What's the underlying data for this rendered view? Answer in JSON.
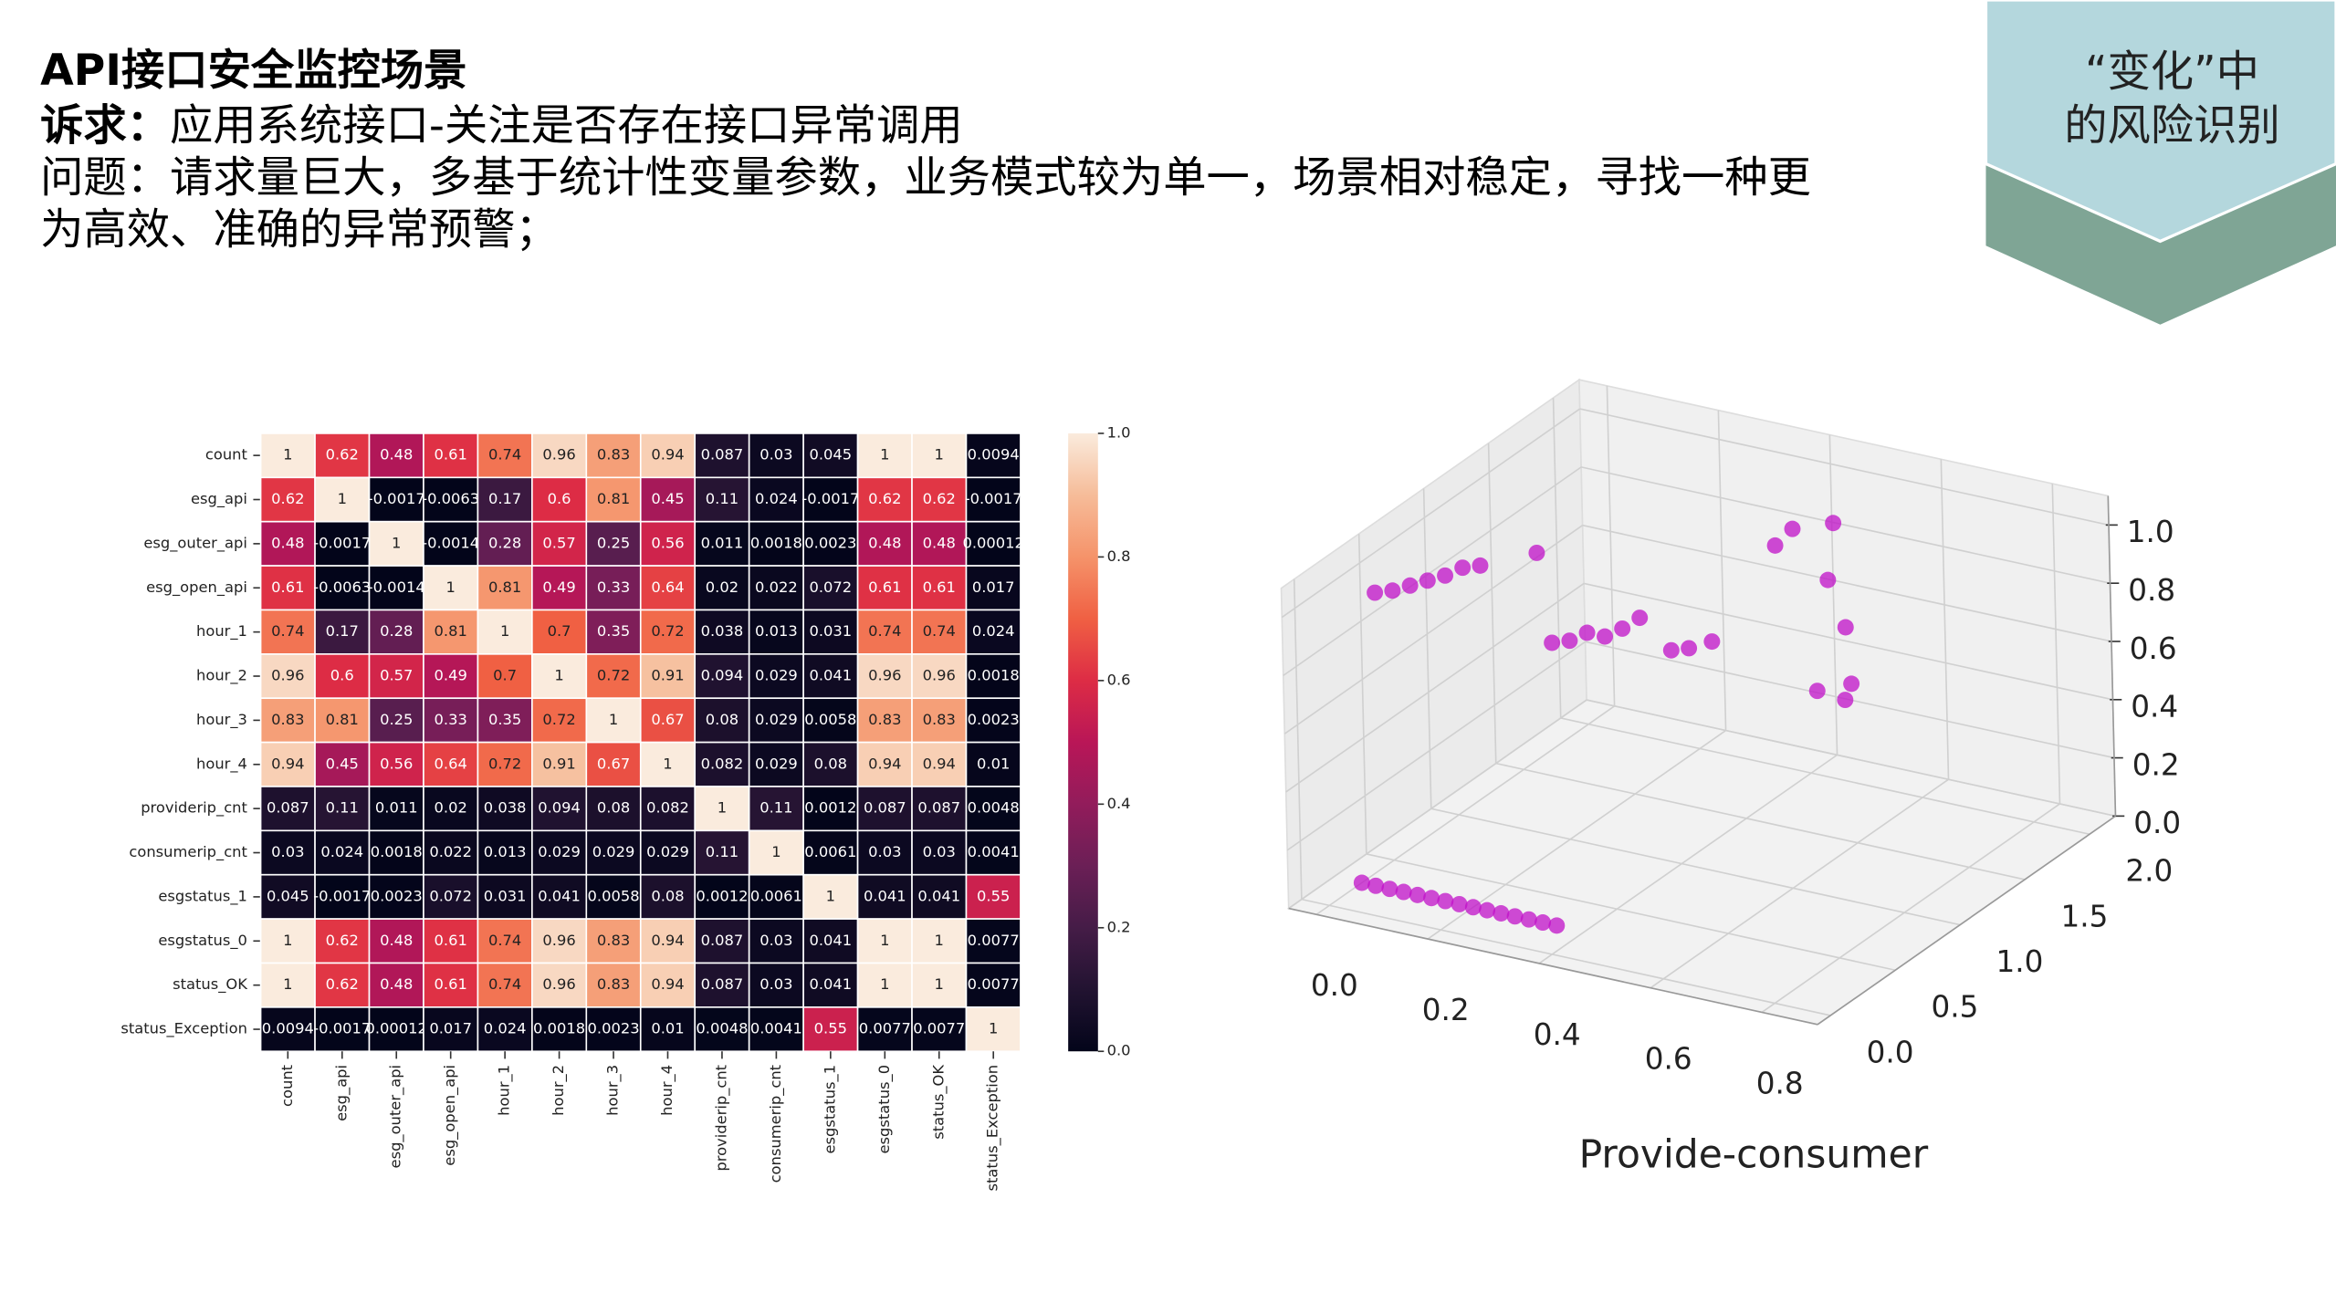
{
  "header": {
    "title": "API接口安全监控场景",
    "demand_label": "诉求：",
    "demand": "应用系统接口-关注是否存在接口异常调用",
    "problem_lines": [
      "问题：请求量巨大，多基于统计性变量参数，业务模式较为单一，场景相对稳定，寻找一种更",
      "为高效、准确的异常预警；"
    ]
  },
  "badge": {
    "lines": [
      "“变化”中",
      "的风险识别"
    ]
  },
  "chart_data": [
    {
      "type": "heatmap",
      "rows": [
        "count",
        "esg_api",
        "esg_outer_api",
        "esg_open_api",
        "hour_1",
        "hour_2",
        "hour_3",
        "hour_4",
        "providerip_cnt",
        "consumerip_cnt",
        "esgstatus_1",
        "esgstatus_0",
        "status_OK",
        "status_Exception"
      ],
      "columns": [
        "count",
        "esg_api",
        "esg_outer_api",
        "esg_open_api",
        "hour_1",
        "hour_2",
        "hour_3",
        "hour_4",
        "providerip_cnt",
        "consumerip_cnt",
        "esgstatus_1",
        "esgstatus_0",
        "status_OK",
        "status_Exception"
      ],
      "values": [
        [
          1,
          0.62,
          0.48,
          0.61,
          0.74,
          0.96,
          0.83,
          0.94,
          0.087,
          0.03,
          0.045,
          1,
          1,
          0.0094
        ],
        [
          0.62,
          1,
          -0.0017,
          -0.0063,
          0.17,
          0.6,
          0.81,
          0.45,
          0.11,
          0.024,
          -0.0017,
          0.62,
          0.62,
          -0.0017
        ],
        [
          0.48,
          -0.0017,
          1,
          -0.0014,
          0.28,
          0.57,
          0.25,
          0.56,
          0.011,
          0.0018,
          0.0023,
          0.48,
          0.48,
          0.00012
        ],
        [
          0.61,
          -0.0063,
          -0.0014,
          1,
          0.81,
          0.49,
          0.33,
          0.64,
          0.02,
          0.022,
          0.072,
          0.61,
          0.61,
          0.017
        ],
        [
          0.74,
          0.17,
          0.28,
          0.81,
          1,
          0.7,
          0.35,
          0.72,
          0.038,
          0.013,
          0.031,
          0.74,
          0.74,
          0.024
        ],
        [
          0.96,
          0.6,
          0.57,
          0.49,
          0.7,
          1,
          0.72,
          0.91,
          0.094,
          0.029,
          0.041,
          0.96,
          0.96,
          0.0018
        ],
        [
          0.83,
          0.81,
          0.25,
          0.33,
          0.35,
          0.72,
          1,
          0.67,
          0.08,
          0.029,
          0.0058,
          0.83,
          0.83,
          0.0023
        ],
        [
          0.94,
          0.45,
          0.56,
          0.64,
          0.72,
          0.91,
          0.67,
          1,
          0.082,
          0.029,
          0.08,
          0.94,
          0.94,
          0.01
        ],
        [
          0.087,
          0.11,
          0.011,
          0.02,
          0.038,
          0.094,
          0.08,
          0.082,
          1,
          0.11,
          0.0012,
          0.087,
          0.087,
          0.0048
        ],
        [
          0.03,
          0.024,
          0.0018,
          0.022,
          0.013,
          0.029,
          0.029,
          0.029,
          0.11,
          1,
          0.0061,
          0.03,
          0.03,
          0.0041
        ],
        [
          0.045,
          -0.0017,
          0.0023,
          0.072,
          0.031,
          0.041,
          0.0058,
          0.08,
          0.0012,
          0.0061,
          1,
          0.041,
          0.041,
          0.55
        ],
        [
          1,
          0.62,
          0.48,
          0.61,
          0.74,
          0.96,
          0.83,
          0.94,
          0.087,
          0.03,
          0.041,
          1,
          1,
          0.0077
        ],
        [
          1,
          0.62,
          0.48,
          0.61,
          0.74,
          0.96,
          0.83,
          0.94,
          0.087,
          0.03,
          0.041,
          1,
          1,
          0.0077
        ],
        [
          0.0094,
          -0.0017,
          0.00012,
          0.017,
          0.024,
          0.0018,
          0.0023,
          0.01,
          0.0048,
          0.0041,
          0.55,
          0.0077,
          0.0077,
          1
        ]
      ],
      "colorscale": [
        "#03051a",
        "#221331",
        "#451c47",
        "#6b1f56",
        "#921c5b",
        "#b91657",
        "#dd2c45",
        "#f06043",
        "#f5936a",
        "#f6bc99",
        "#faebdd"
      ],
      "clim": [
        0,
        1
      ],
      "cticks": [
        {
          "value": 0,
          "label": "0.0"
        },
        0.2,
        0.4,
        0.6,
        0.8,
        {
          "value": 1,
          "label": "1.0"
        }
      ]
    },
    {
      "type": "scatter3d",
      "caption": "Provide-consumer",
      "color": "#c010c8",
      "grid": true,
      "x": [
        0,
        0.025,
        0.05,
        0.075,
        0.1,
        0.125,
        0.15,
        0.175,
        0.2,
        0.225,
        0.25,
        0.275,
        0.3,
        0.325,
        0.35,
        0,
        0.02,
        0.04,
        0.06,
        0.08,
        0.1,
        0.12,
        0.08,
        0.1,
        0.12,
        0.14,
        0.16,
        0.18,
        0.08,
        0.2,
        0.22,
        0.25,
        0.45,
        0.5,
        0.5,
        0.38,
        0.4,
        0.45,
        0.45,
        0.48
      ],
      "y": [
        0.25,
        0.25,
        0.25,
        0.25,
        0.25,
        0.25,
        0.25,
        0.25,
        0.25,
        0.25,
        0.25,
        0.25,
        0.25,
        0.25,
        0.25,
        0.4,
        0.45,
        0.5,
        0.55,
        0.6,
        0.65,
        0.7,
        1.4,
        1.45,
        1.5,
        1.55,
        1.6,
        1.65,
        1.3,
        1.8,
        1.85,
        1.9,
        1.85,
        1.9,
        1.85,
        1.85,
        1.9,
        2,
        1.95,
        1.95
      ],
      "z": [
        0,
        0,
        0,
        0,
        0,
        0,
        0,
        0,
        0,
        0,
        0,
        0,
        0,
        0,
        0,
        0.95,
        0.95,
        0.96,
        0.97,
        0.98,
        1,
        1,
        0.5,
        0.5,
        0.52,
        0.5,
        0.52,
        0.55,
        0.84,
        0.4,
        0.4,
        0.42,
        0.35,
        0.38,
        0.34,
        0.82,
        0.87,
        0.88,
        0.7,
        0.55
      ],
      "xlim": [
        -0.05,
        0.9
      ],
      "ylim": [
        -0.1,
        2.2
      ],
      "zlim": [
        0,
        1.1
      ],
      "xticks": [
        {
          "value": 0,
          "label": "0.0"
        },
        0.2,
        0.4,
        0.6,
        0.8
      ],
      "yticks": [
        {
          "value": 0,
          "label": "0.0"
        },
        0.5,
        {
          "value": 1,
          "label": "1.0"
        },
        1.5,
        {
          "value": 2,
          "label": "2.0"
        }
      ],
      "zticks": [
        {
          "value": 0,
          "label": "0.0"
        },
        0.2,
        0.4,
        0.6,
        0.8,
        {
          "value": 1,
          "label": "1.0"
        }
      ]
    }
  ]
}
